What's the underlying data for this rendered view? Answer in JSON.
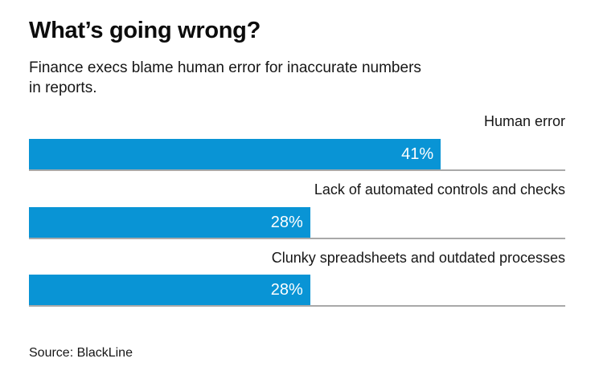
{
  "header": {
    "title": "What’s going wrong?",
    "subtitle_lines": [
      "Finance execs blame human error for inaccurate numbers",
      "in reports."
    ]
  },
  "chart_data": {
    "type": "bar",
    "orientation": "horizontal",
    "title": "What’s going wrong?",
    "subtitle": "Finance execs blame human error for inaccurate numbers in reports.",
    "categories": [
      "Human error",
      "Lack of automated controls and checks",
      "Clunky spreadsheets and outdated processes"
    ],
    "values": [
      41,
      28,
      28
    ],
    "value_labels": [
      "41%",
      "28%",
      "28%"
    ],
    "unit": "%",
    "xlim": [
      0,
      53.4
    ],
    "grid": false,
    "legend": false,
    "category_label_position": "above-bar-right",
    "value_label_position": "inside-end"
  },
  "colors": {
    "bar": "#0994d5",
    "baseline": "#a9a9a9",
    "value_text": "#ffffff",
    "text": "#161616"
  },
  "source": "Source: BlackLine"
}
